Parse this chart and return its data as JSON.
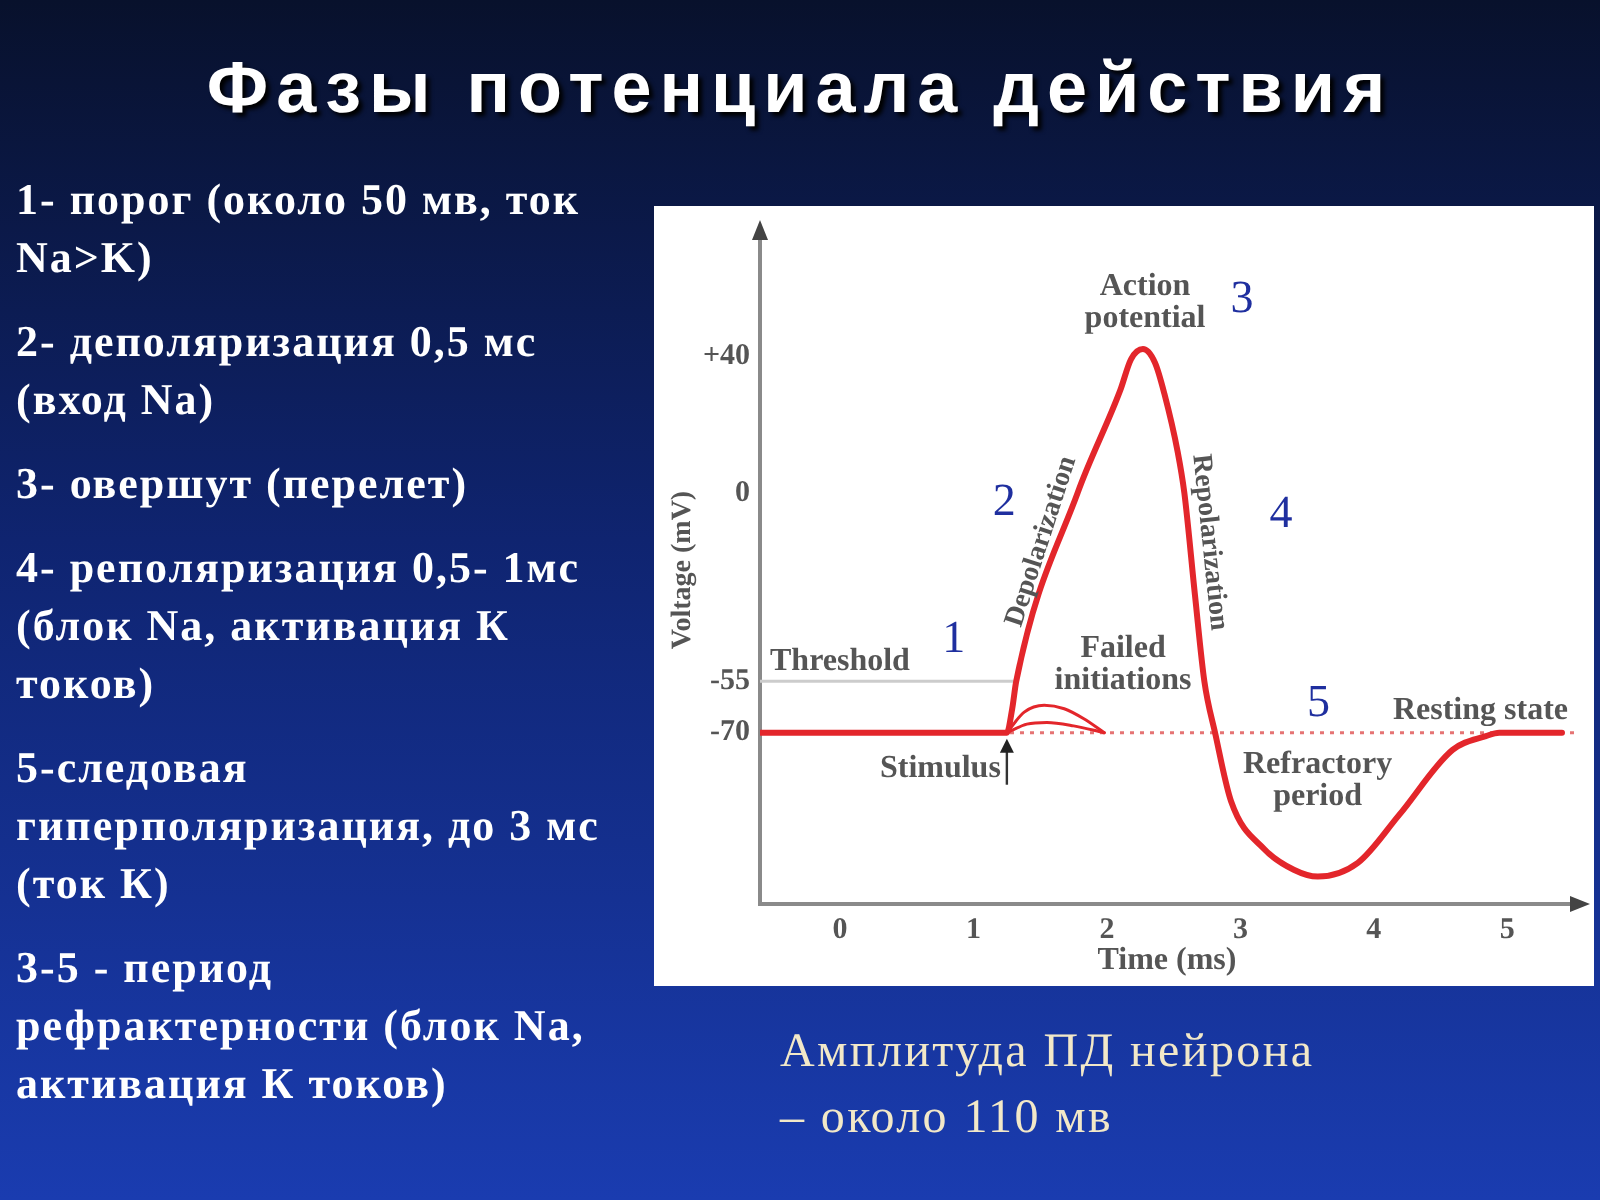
{
  "chart_data": {
    "type": "line",
    "title": "Фазы потенциала действия",
    "xlabel": "Time (ms)",
    "ylabel": "Voltage (mV)",
    "xlim": [
      -0.6,
      5.5
    ],
    "xticks": [
      0,
      1,
      2,
      3,
      4,
      5
    ],
    "ylim": [
      -120,
      75
    ],
    "yticks": [
      {
        "value": 40,
        "label": "+40"
      },
      0,
      -55,
      -70
    ],
    "marker": "none",
    "series": [
      {
        "color": "#e3262b",
        "x": [
          -0.6,
          1.25,
          1.29,
          1.32,
          1.78,
          2.1,
          2.18,
          2.27,
          2.36,
          2.43,
          2.53,
          2.58,
          2.66,
          2.73,
          2.81,
          2.93,
          3.18,
          3.4,
          3.58,
          3.88,
          4.19,
          4.59,
          4.84,
          4.94,
          5.41
        ],
        "values": [
          -70,
          -70,
          -63,
          -55,
          0,
          30,
          39,
          42,
          38,
          29,
          12,
          0,
          -30,
          -55,
          -70,
          -90,
          -104,
          -110,
          -112,
          -108,
          -94,
          -75,
          -71,
          -70,
          -70
        ]
      },
      {
        "color": "#e3262b",
        "x": [
          1.25,
          1.38,
          1.53,
          1.68,
          1.83,
          1.98
        ],
        "values": [
          -70,
          -64,
          -62,
          -63,
          -66,
          -70
        ]
      },
      {
        "color": "#e3262b",
        "x": [
          1.25,
          1.4,
          1.55,
          1.75,
          1.98
        ],
        "values": [
          -70,
          -67.5,
          -67,
          -68,
          -70
        ]
      }
    ],
    "ref_lines": [
      {
        "axis": "y",
        "value": -55,
        "label": "Threshold",
        "color": "#cccccc"
      },
      {
        "axis": "y",
        "value": -70,
        "label": "Resting state",
        "color": "#e57373",
        "line_style": "dotted"
      }
    ],
    "annotations": [
      "1- порог (около 50 мв, ток Na>K)",
      "2- деполяризация 0,5 мс (вход Na)",
      "3- овершут (перелет)",
      "4- реполяризация 0,5- 1мс (блок Na, активация К токов)",
      "5-следовая гиперполяризация, до 3 мс (ток К)",
      "3-5 - период рефрактерности (блок Na, активация К токов)",
      "Амплитуда ПД нейрона – около 110 мв",
      "Action potential",
      {
        "text": "Depolarization",
        "x": 1.65,
        "y": -16
      },
      {
        "text": "Repolarization",
        "x": 2.62,
        "y": -15
      },
      "Failed initiations",
      {
        "text": "Stimulus",
        "x": 1.25,
        "y": -70
      },
      "Refractory period",
      "1",
      "2",
      "3",
      "4",
      "5"
    ]
  }
}
